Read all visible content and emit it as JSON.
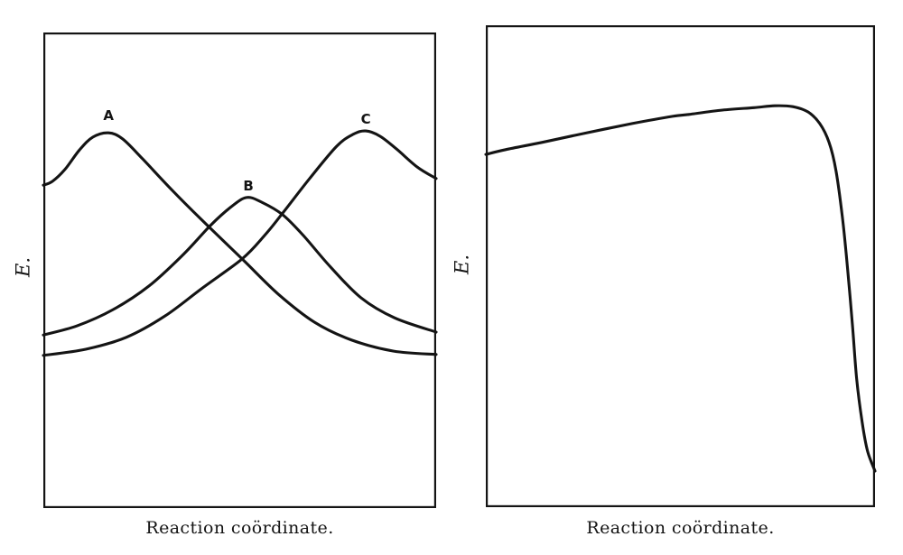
{
  "figure": {
    "background_color": "#ffffff",
    "ink_color": "#141414"
  },
  "chart_data": [
    {
      "type": "line",
      "title": "",
      "xlabel": "Reaction coördinate.",
      "ylabel": "E.",
      "x_range": [
        0,
        1
      ],
      "y_range": [
        0,
        1
      ],
      "grid": false,
      "frame": "full-box",
      "ticks": "none",
      "legend": "none",
      "series": [
        {
          "name": "A",
          "label": "A",
          "label_pos": [
            0.166,
            0.825
          ],
          "points": [
            [
              0.0,
              0.679
            ],
            [
              0.023,
              0.687
            ],
            [
              0.055,
              0.712
            ],
            [
              0.092,
              0.753
            ],
            [
              0.126,
              0.78
            ],
            [
              0.166,
              0.789
            ],
            [
              0.202,
              0.776
            ],
            [
              0.253,
              0.734
            ],
            [
              0.326,
              0.67
            ],
            [
              0.402,
              0.607
            ],
            [
              0.506,
              0.524
            ],
            [
              0.598,
              0.45
            ],
            [
              0.69,
              0.391
            ],
            [
              0.786,
              0.353
            ],
            [
              0.892,
              0.33
            ],
            [
              1.0,
              0.323
            ]
          ]
        },
        {
          "name": "B",
          "label": "B",
          "label_pos": [
            0.522,
            0.677
          ],
          "points": [
            [
              0.0,
              0.364
            ],
            [
              0.085,
              0.383
            ],
            [
              0.177,
              0.417
            ],
            [
              0.269,
              0.467
            ],
            [
              0.356,
              0.533
            ],
            [
              0.425,
              0.594
            ],
            [
              0.476,
              0.632
            ],
            [
              0.517,
              0.653
            ],
            [
              0.556,
              0.643
            ],
            [
              0.609,
              0.617
            ],
            [
              0.662,
              0.573
            ],
            [
              0.731,
              0.507
            ],
            [
              0.809,
              0.442
            ],
            [
              0.894,
              0.4
            ],
            [
              1.0,
              0.37
            ]
          ]
        },
        {
          "name": "C",
          "label": "C",
          "label_pos": [
            0.821,
            0.818
          ],
          "points": [
            [
              0.0,
              0.321
            ],
            [
              0.108,
              0.334
            ],
            [
              0.211,
              0.359
            ],
            [
              0.31,
              0.404
            ],
            [
              0.402,
              0.461
            ],
            [
              0.506,
              0.524
            ],
            [
              0.563,
              0.573
            ],
            [
              0.609,
              0.62
            ],
            [
              0.678,
              0.693
            ],
            [
              0.747,
              0.761
            ],
            [
              0.789,
              0.786
            ],
            [
              0.821,
              0.793
            ],
            [
              0.857,
              0.782
            ],
            [
              0.899,
              0.755
            ],
            [
              0.952,
              0.717
            ],
            [
              1.0,
              0.693
            ]
          ]
        }
      ]
    },
    {
      "type": "line",
      "title": "",
      "xlabel": "Reaction coördinate.",
      "ylabel": "E.",
      "x_range": [
        0,
        1
      ],
      "y_range": [
        0,
        1
      ],
      "grid": false,
      "frame": "full-box",
      "ticks": "none",
      "legend": "none",
      "series": [
        {
          "name": "energy-profile",
          "label": "",
          "points": [
            [
              0.0,
              0.732
            ],
            [
              0.051,
              0.742
            ],
            [
              0.144,
              0.757
            ],
            [
              0.26,
              0.777
            ],
            [
              0.376,
              0.796
            ],
            [
              0.48,
              0.811
            ],
            [
              0.522,
              0.815
            ],
            [
              0.608,
              0.824
            ],
            [
              0.689,
              0.829
            ],
            [
              0.742,
              0.833
            ],
            [
              0.789,
              0.831
            ],
            [
              0.828,
              0.82
            ],
            [
              0.858,
              0.796
            ],
            [
              0.882,
              0.757
            ],
            [
              0.9,
              0.697
            ],
            [
              0.916,
              0.603
            ],
            [
              0.93,
              0.491
            ],
            [
              0.942,
              0.378
            ],
            [
              0.953,
              0.266
            ],
            [
              0.967,
              0.176
            ],
            [
              0.981,
              0.116
            ],
            [
              1.0,
              0.075
            ]
          ]
        }
      ]
    }
  ]
}
